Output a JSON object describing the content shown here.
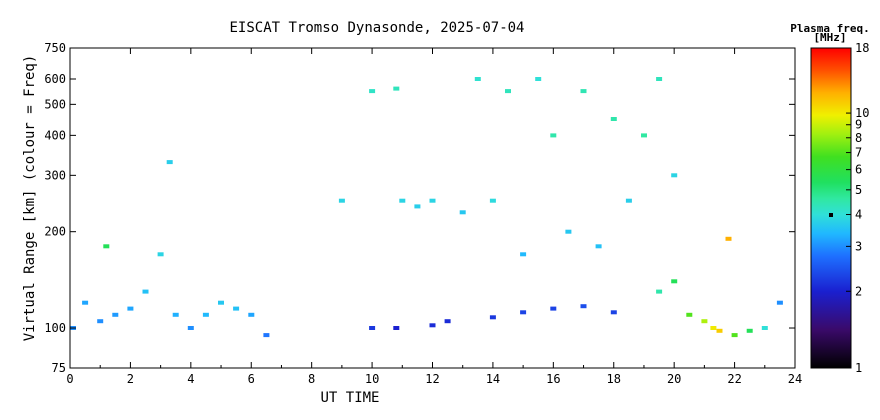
{
  "chart_data": {
    "type": "scatter",
    "title": "EISCAT Tromso Dynasonde, 2025-07-04",
    "xlabel": "UT TIME",
    "ylabel": "Virtual Range [km] (colour = Freq)",
    "xlim": [
      0,
      24
    ],
    "ylim": [
      75,
      750
    ],
    "yscale": "log",
    "x_ticks": [
      "0",
      "2",
      "4",
      "6",
      "8",
      "10",
      "12",
      "14",
      "16",
      "18",
      "20",
      "22",
      "24"
    ],
    "y_ticks": [
      "75",
      "100",
      "200",
      "300",
      "400",
      "500",
      "600",
      "750"
    ],
    "colorbar": {
      "label_line1": "Plasma freq.",
      "label_line2": "[MHz]",
      "range": [
        1,
        18
      ],
      "scale": "log",
      "ticks": [
        "1",
        "2",
        "3",
        "4",
        "5",
        "6",
        "7",
        "8",
        "9",
        "10",
        "18"
      ]
    },
    "series": [
      {
        "points": [
          {
            "x": 0.1,
            "y": 100,
            "f": 3.0
          },
          {
            "x": 0.5,
            "y": 120,
            "f": 3.2
          },
          {
            "x": 1.0,
            "y": 105,
            "f": 3.0
          },
          {
            "x": 1.2,
            "y": 180,
            "f": 5.5
          },
          {
            "x": 1.5,
            "y": 110,
            "f": 3.1
          },
          {
            "x": 2.0,
            "y": 115,
            "f": 3.2
          },
          {
            "x": 2.5,
            "y": 130,
            "f": 3.5
          },
          {
            "x": 3.0,
            "y": 170,
            "f": 3.8
          },
          {
            "x": 3.3,
            "y": 330,
            "f": 3.7
          },
          {
            "x": 3.5,
            "y": 110,
            "f": 3.3
          },
          {
            "x": 4.0,
            "y": 100,
            "f": 3.0
          },
          {
            "x": 4.5,
            "y": 110,
            "f": 3.4
          },
          {
            "x": 5.0,
            "y": 120,
            "f": 3.6
          },
          {
            "x": 5.5,
            "y": 115,
            "f": 3.5
          },
          {
            "x": 6.0,
            "y": 110,
            "f": 3.2
          },
          {
            "x": 6.5,
            "y": 95,
            "f": 2.8
          },
          {
            "x": 9.0,
            "y": 250,
            "f": 3.8
          },
          {
            "x": 10.0,
            "y": 100,
            "f": 2.2
          },
          {
            "x": 10.0,
            "y": 550,
            "f": 4.2
          },
          {
            "x": 10.8,
            "y": 100,
            "f": 2.0
          },
          {
            "x": 10.8,
            "y": 560,
            "f": 4.3
          },
          {
            "x": 11.0,
            "y": 250,
            "f": 3.8
          },
          {
            "x": 11.5,
            "y": 240,
            "f": 3.7
          },
          {
            "x": 12.0,
            "y": 102,
            "f": 2.1
          },
          {
            "x": 12.0,
            "y": 250,
            "f": 3.8
          },
          {
            "x": 12.5,
            "y": 105,
            "f": 2.1
          },
          {
            "x": 13.0,
            "y": 230,
            "f": 3.6
          },
          {
            "x": 13.5,
            "y": 600,
            "f": 4.1
          },
          {
            "x": 14.0,
            "y": 108,
            "f": 2.2
          },
          {
            "x": 14.0,
            "y": 250,
            "f": 3.9
          },
          {
            "x": 14.5,
            "y": 550,
            "f": 4.3
          },
          {
            "x": 15.0,
            "y": 112,
            "f": 2.3
          },
          {
            "x": 15.0,
            "y": 170,
            "f": 3.4
          },
          {
            "x": 15.5,
            "y": 600,
            "f": 4.0
          },
          {
            "x": 16.0,
            "y": 115,
            "f": 2.3
          },
          {
            "x": 16.0,
            "y": 400,
            "f": 4.5
          },
          {
            "x": 16.5,
            "y": 200,
            "f": 3.6
          },
          {
            "x": 17.0,
            "y": 117,
            "f": 2.4
          },
          {
            "x": 17.0,
            "y": 550,
            "f": 4.4
          },
          {
            "x": 17.5,
            "y": 180,
            "f": 3.5
          },
          {
            "x": 18.0,
            "y": 112,
            "f": 2.3
          },
          {
            "x": 18.0,
            "y": 450,
            "f": 4.5
          },
          {
            "x": 18.5,
            "y": 250,
            "f": 3.7
          },
          {
            "x": 19.0,
            "y": 400,
            "f": 4.6
          },
          {
            "x": 19.5,
            "y": 600,
            "f": 4.3
          },
          {
            "x": 19.5,
            "y": 130,
            "f": 4.5
          },
          {
            "x": 20.0,
            "y": 300,
            "f": 3.8
          },
          {
            "x": 20.0,
            "y": 140,
            "f": 5.5
          },
          {
            "x": 20.5,
            "y": 110,
            "f": 7.0
          },
          {
            "x": 21.0,
            "y": 105,
            "f": 8.5
          },
          {
            "x": 21.3,
            "y": 100,
            "f": 10.0
          },
          {
            "x": 21.5,
            "y": 98,
            "f": 11.0
          },
          {
            "x": 21.8,
            "y": 190,
            "f": 12.0
          },
          {
            "x": 22.0,
            "y": 95,
            "f": 7.0
          },
          {
            "x": 22.5,
            "y": 98,
            "f": 5.5
          },
          {
            "x": 23.0,
            "y": 100,
            "f": 4.0
          },
          {
            "x": 23.5,
            "y": 120,
            "f": 3.0
          }
        ]
      }
    ]
  }
}
